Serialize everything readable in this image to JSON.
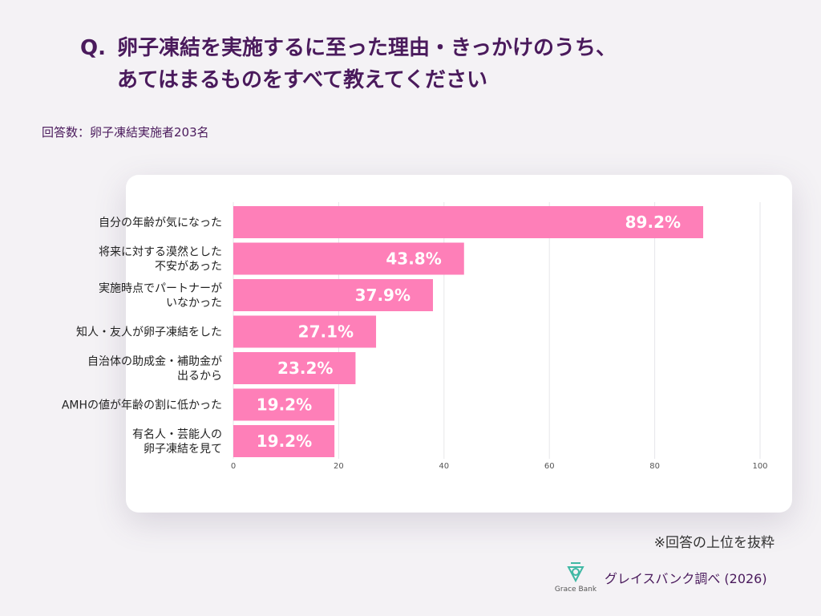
{
  "header": {
    "q_mark": "Q.",
    "title_line1": "卵子凍結を実施するに至った理由・きっかけのうち、",
    "title_line2": "あてはまるものをすべて教えてください",
    "respondents": "回答数：卵子凍結実施者203名"
  },
  "footer": {
    "note": "※回答の上位を抜粋",
    "logo_text": "Grace Bank",
    "source": "グレイスバンク調べ (2026)"
  },
  "colors": {
    "bar": "#fe7fb8",
    "title": "#4a1a5c",
    "label_text": "#ffffff",
    "grid": "#e6e6ea",
    "logo": "#3fb8a4"
  },
  "chart_data": {
    "type": "bar",
    "orientation": "horizontal",
    "categories": [
      [
        "自分の年齢が気になった"
      ],
      [
        "将来に対する漠然とした",
        "不安があった"
      ],
      [
        "実施時点でパートナーが",
        "いなかった"
      ],
      [
        "知人・友人が卵子凍結をした"
      ],
      [
        "自治体の助成金・補助金が",
        "出るから"
      ],
      [
        "AMHの値が年齢の割に低かった"
      ],
      [
        "有名人・芸能人の",
        "卵子凍結を見て"
      ]
    ],
    "values": [
      89.2,
      43.8,
      37.9,
      27.1,
      23.2,
      19.2,
      19.2
    ],
    "value_labels": [
      "89.2%",
      "43.8%",
      "37.9%",
      "27.1%",
      "23.2%",
      "19.2%",
      "19.2%"
    ],
    "xlim": [
      0,
      100
    ],
    "x_ticks": [
      "0",
      "20",
      "40",
      "60",
      "80",
      "100"
    ],
    "grid": true,
    "legend": "none"
  }
}
